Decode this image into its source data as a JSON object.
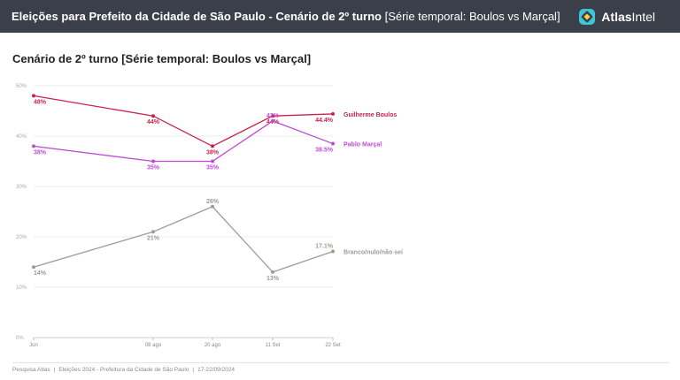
{
  "header": {
    "title_bold": "Eleições para Prefeito da Cidade de São Paulo - Cenário de 2º turno",
    "title_rest": "[Série temporal: Boulos vs Marçal]",
    "brand_bold": "Atlas",
    "brand_rest": "Intel",
    "brand_icon": "atlasintel-logo-icon",
    "bar_color": "#3a3f4a"
  },
  "chart_data": {
    "type": "line",
    "title": "Cenário de 2º turno [Série temporal: Boulos vs Marçal]",
    "xlabel": "",
    "ylabel": "",
    "categories": [
      "Jun",
      "08 ago",
      "20 ago",
      "11 Set",
      "22 Set"
    ],
    "ylim": [
      0,
      50
    ],
    "yticks": [
      "0%",
      "10%",
      "20%",
      "30%",
      "40%",
      "50%"
    ],
    "grid": true,
    "legend": "right-end labels",
    "series": [
      {
        "name": "Guilherme Boulos",
        "color": "#c8234a",
        "values": [
          48,
          44,
          38,
          44,
          44.4
        ],
        "labels": [
          "48%",
          "44%",
          "38%",
          "44%",
          "44.4%"
        ]
      },
      {
        "name": "Pablo Marçal",
        "color": "#c04ad6",
        "values": [
          38,
          35,
          35,
          43,
          38.5
        ],
        "labels": [
          "38%",
          "35%",
          "35%",
          "43%",
          "38.5%"
        ]
      },
      {
        "name": "Branco/nulo/não sei",
        "color": "#a19a96",
        "values": [
          14,
          21,
          26,
          13,
          17.1
        ],
        "labels": [
          "14%",
          "21%",
          "26%",
          "13%",
          "17.1%"
        ]
      }
    ]
  },
  "footer": {
    "items": [
      "Pesquisa Atlas",
      "Eleições 2024 - Prefeitura da Cidade de São Paulo",
      "17-22/09/2024"
    ],
    "separator": "|"
  }
}
